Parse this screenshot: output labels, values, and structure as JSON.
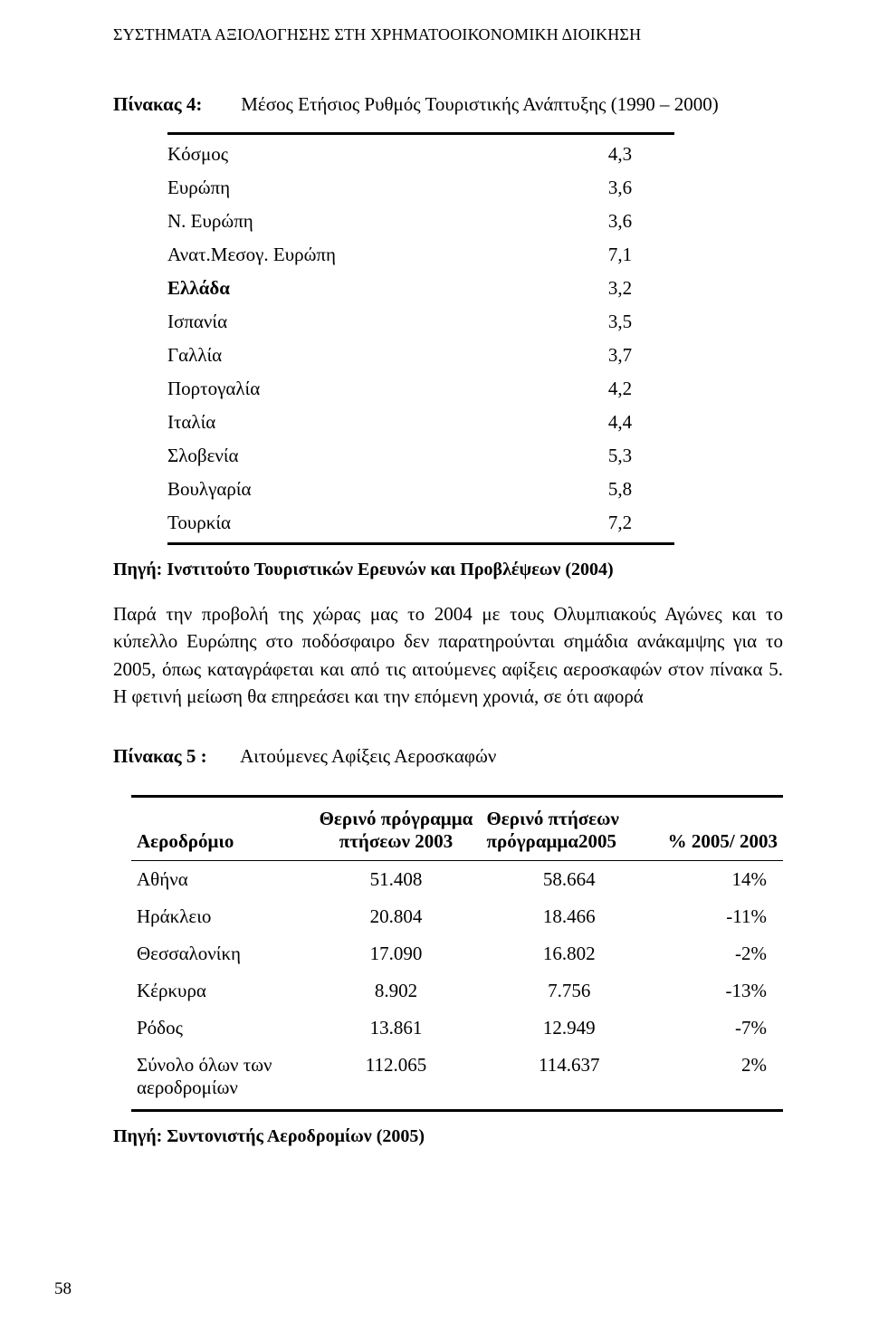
{
  "header": "ΣΥΣΤΗΜΑΤΑ ΑΞΙΟΛΟΓΗΣΗΣ ΣΤΗ ΧΡΗΜΑΤΟΟΙΚΟΝΟΜΙΚΗ ΔΙΟΙΚΗΣΗ",
  "page_number": "58",
  "table4": {
    "label": "Πίνακας 4:",
    "title": "Μέσος Ετήσιος Ρυθμός Τουριστικής Ανάπτυξης (1990 – 2000)",
    "rows": [
      {
        "name": "Κόσμος",
        "value": "4,3",
        "bold": false
      },
      {
        "name": "Ευρώπη",
        "value": "3,6",
        "bold": false
      },
      {
        "name": "Ν. Ευρώπη",
        "value": "3,6",
        "bold": false
      },
      {
        "name": "Ανατ.Μεσογ. Ευρώπη",
        "value": "7,1",
        "bold": false
      },
      {
        "name": "Ελλάδα",
        "value": "3,2",
        "bold": true
      },
      {
        "name": "Ισπανία",
        "value": "3,5",
        "bold": false
      },
      {
        "name": "Γαλλία",
        "value": "3,7",
        "bold": false
      },
      {
        "name": "Πορτογαλία",
        "value": "4,2",
        "bold": false
      },
      {
        "name": "Ιταλία",
        "value": "4,4",
        "bold": false
      },
      {
        "name": "Σλοβενία",
        "value": "5,3",
        "bold": false
      },
      {
        "name": "Βουλγαρία",
        "value": "5,8",
        "bold": false
      },
      {
        "name": "Τουρκία",
        "value": "7,2",
        "bold": false
      }
    ],
    "source": "Πηγή: Ινστιτούτο Τουριστικών Ερευνών και Προβλέψεων (2004)"
  },
  "paragraph": "Παρά την προβολή της χώρας μας το 2004 με τους Ολυμπιακούς Αγώνες και το κύπελλο Ευρώπης στο ποδόσφαιρο δεν παρατηρούνται σημάδια ανάκαμψης για το 2005, όπως καταγράφεται και από τις αιτούμενες αφίξεις αεροσκαφών στον πίνακα 5. Η φετινή μείωση θα επηρεάσει και την επόμενη χρονιά, σε ότι αφορά",
  "table5": {
    "label": "Πίνακας 5 :",
    "title": "Αιτούμενες Αφίξεις Αεροσκαφών",
    "columns": {
      "airport": "Αεροδρόμιο",
      "prog2003_1": "Θερινό πρόγραμμα",
      "prog2003_2": "πτήσεων 2003",
      "prog2005_1": "Θερινό πτήσεων",
      "prog2005_2": "πρόγραμμα2005",
      "pct": "% 2005/ 2003"
    },
    "rows": [
      {
        "airport": "Αθήνα",
        "v03": "51.408",
        "v05": "58.664",
        "pct": "14%"
      },
      {
        "airport": "Ηράκλειο",
        "v03": "20.804",
        "v05": "18.466",
        "pct": "-11%"
      },
      {
        "airport": "Θεσσαλονίκη",
        "v03": "17.090",
        "v05": "16.802",
        "pct": "-2%"
      },
      {
        "airport": "Κέρκυρα",
        "v03": "8.902",
        "v05": "7.756",
        "pct": "-13%"
      },
      {
        "airport": "Ρόδος",
        "v03": "13.861",
        "v05": "12.949",
        "pct": "-7%"
      }
    ],
    "total_row": {
      "airport_1": "Σύνολο όλων των",
      "airport_2": "αεροδρομίων",
      "v03": "112.065",
      "v05": "114.637",
      "pct": "2%"
    },
    "source": "Πηγή: Συντονιστής Αεροδρομίων (2005)"
  },
  "style": {
    "text_color": "#000000",
    "background_color": "#ffffff",
    "rule_color": "#000000"
  }
}
